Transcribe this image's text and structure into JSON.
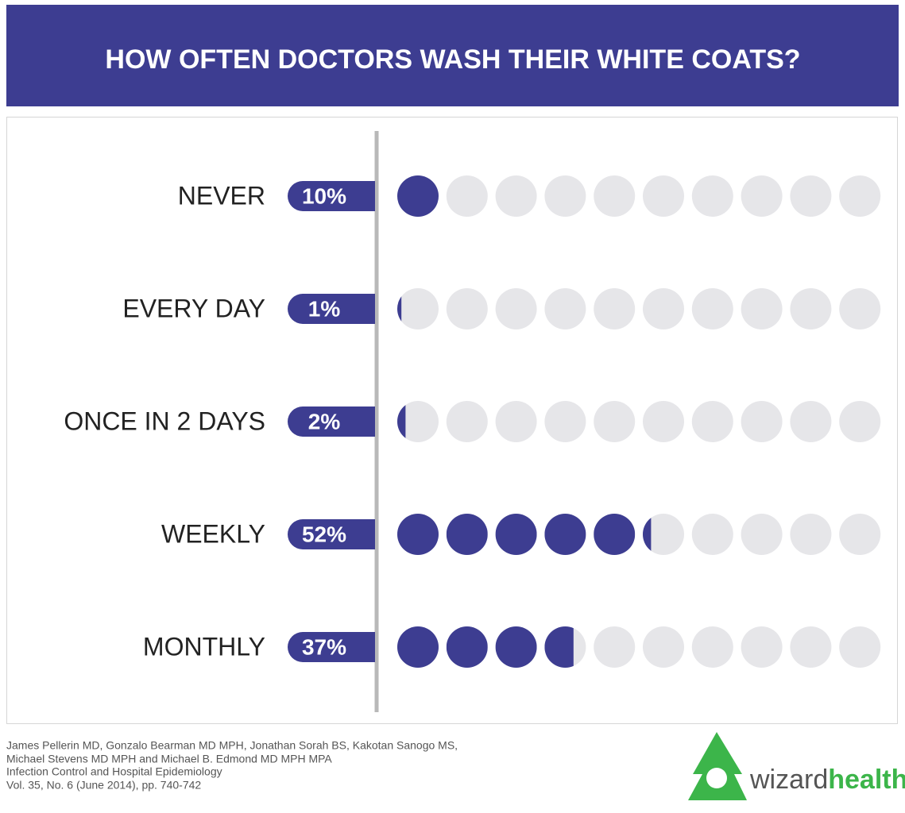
{
  "chart_data": {
    "type": "dots",
    "title": "HOW OFTEN DOCTORS WASH THEIR WHITE COATS?",
    "categories": [
      "NEVER",
      "EVERY DAY",
      "ONCE IN 2 DAYS",
      "WEEKLY",
      "MONTHLY"
    ],
    "values": [
      10,
      1,
      2,
      52,
      37
    ],
    "value_labels": [
      "10%",
      "1%",
      "2%",
      "52%",
      "37%"
    ],
    "xlim": [
      0,
      100
    ],
    "dots": 10,
    "color": "#3d3d91",
    "empty_color": "#e6e6e9"
  },
  "source": [
    "James Pellerin MD, Gonzalo Bearman MD MPH, Jonathan Sorah BS, Kakotan Sanogo MS,",
    "Michael Stevens MD MPH and Michael B. Edmond MD MPH MPA",
    "Infection Control and Hospital Epidemiology",
    "Vol. 35, No. 6 (June 2014), pp. 740-742"
  ],
  "brand": [
    "wizard",
    "health"
  ]
}
